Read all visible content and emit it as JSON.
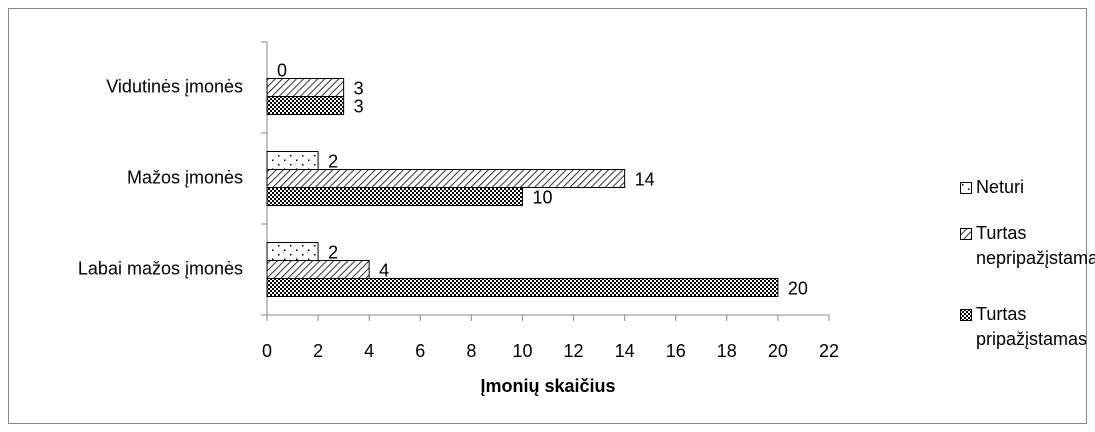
{
  "chart_data": {
    "type": "bar",
    "orientation": "horizontal",
    "xlabel": "Įmonių skaičius",
    "categories": [
      "Labai mažos įmonės",
      "Mažos įmonės",
      "Vidutinės įmonės"
    ],
    "series": [
      {
        "name": "Neturi",
        "color": "#000000",
        "pattern": "dots",
        "values": [
          2,
          2,
          0
        ]
      },
      {
        "name": "Turtas nepripažįstamas",
        "color": "#000000",
        "pattern": "hatch",
        "values": [
          4,
          14,
          3
        ]
      },
      {
        "name": "Turtas pripažįstamas",
        "color": "#000000",
        "pattern": "crosshatch",
        "values": [
          20,
          10,
          3
        ]
      }
    ],
    "xlim": [
      0,
      22
    ],
    "xticks": [
      0,
      2,
      4,
      6,
      8,
      10,
      12,
      14,
      16,
      18,
      20,
      22
    ],
    "legend": "right",
    "grid": false
  }
}
